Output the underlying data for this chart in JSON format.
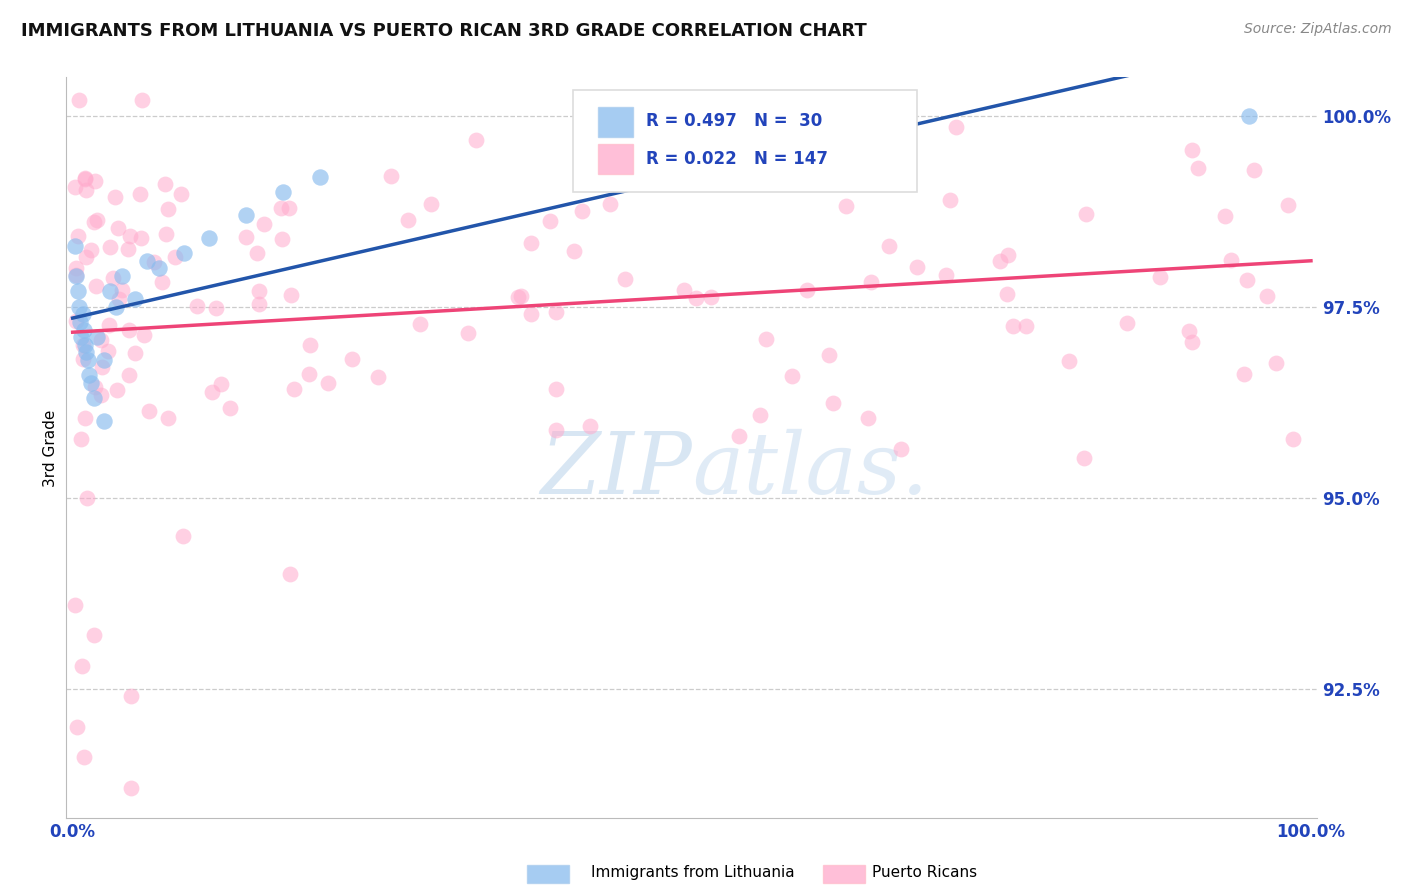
{
  "title": "IMMIGRANTS FROM LITHUANIA VS PUERTO RICAN 3RD GRADE CORRELATION CHART",
  "source": "Source: ZipAtlas.com",
  "ylabel": "3rd Grade",
  "ytick_values": [
    0.925,
    0.95,
    0.975,
    1.0
  ],
  "xlim": [
    -0.005,
    1.005
  ],
  "ylim": [
    0.908,
    1.005
  ],
  "blue_color": "#88BBEE",
  "pink_color": "#FFAACC",
  "trend_blue": "#2255AA",
  "trend_pink": "#EE4477",
  "text_color": "#2244BB",
  "title_color": "#111111",
  "watermark_color": "#DDEEFF",
  "legend_text_color": "#2244BB"
}
